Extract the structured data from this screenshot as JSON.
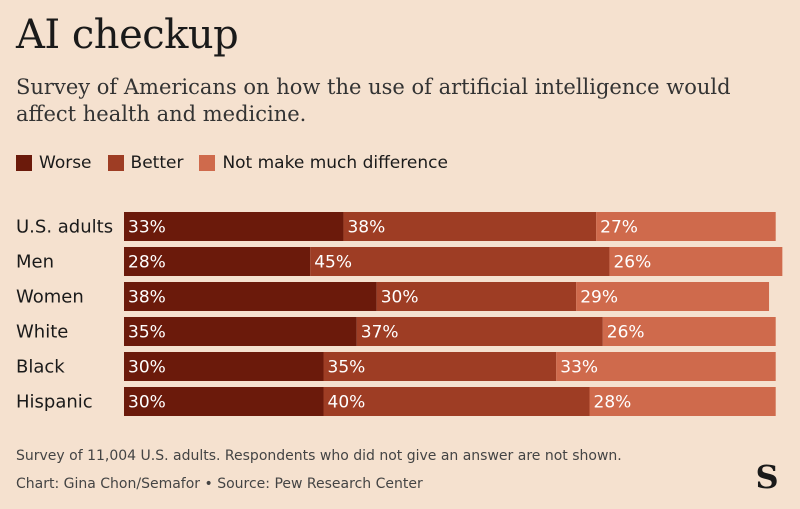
{
  "title": "AI checkup",
  "subtitle": "Survey of Americans on how the use of artificial intelligence would affect health and medicine.",
  "colors": {
    "background": "#f5e1cf",
    "worse": "#6b1a0b",
    "better": "#9e3d24",
    "no_difference": "#cf6a4c"
  },
  "legend": [
    {
      "label": "Worse",
      "color": "#6b1a0b"
    },
    {
      "label": "Better",
      "color": "#9e3d24"
    },
    {
      "label": "Not make much difference",
      "color": "#cf6a4c"
    }
  ],
  "chart_data": {
    "type": "bar",
    "orientation": "horizontal",
    "stacked": true,
    "categories": [
      "U.S. adults",
      "Men",
      "Women",
      "White",
      "Black",
      "Hispanic"
    ],
    "xlim": [
      0,
      100
    ],
    "legend_position": "top-left",
    "grid": false,
    "series": [
      {
        "name": "Worse",
        "color": "#6b1a0b",
        "values": [
          33,
          28,
          38,
          35,
          30,
          30
        ]
      },
      {
        "name": "Better",
        "color": "#9e3d24",
        "values": [
          38,
          45,
          30,
          37,
          35,
          40
        ]
      },
      {
        "name": "Not make much difference",
        "color": "#cf6a4c",
        "values": [
          27,
          26,
          29,
          26,
          33,
          28
        ]
      }
    ]
  },
  "footer": {
    "note": "Survey of 11,004 U.S. adults. Respondents who did not give an answer are not shown.",
    "credit": "Chart: Gina Chon/Semafor • Source: Pew Research Center"
  },
  "logo": {
    "name": "semafor-s-logo",
    "letter": "S"
  }
}
